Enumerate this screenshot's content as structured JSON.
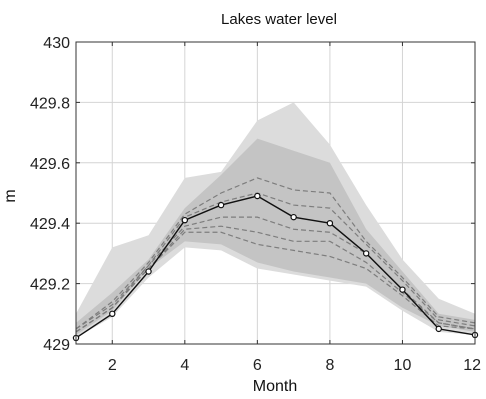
{
  "chart_data": {
    "type": "line",
    "title": "Lakes water level",
    "xlabel": "Month",
    "ylabel": "m",
    "xlim": [
      1,
      12
    ],
    "ylim": [
      429,
      430
    ],
    "grid": true,
    "legend": "none",
    "x": [
      1,
      2,
      3,
      4,
      5,
      6,
      7,
      8,
      9,
      10,
      11,
      12
    ],
    "x_ticks": [
      2,
      4,
      6,
      8,
      10,
      12
    ],
    "x_tick_labels": [
      "2",
      "4",
      "6",
      "8",
      "10",
      "12"
    ],
    "y_ticks": [
      429,
      429.2,
      429.4,
      429.6,
      429.8,
      430
    ],
    "y_tick_labels": [
      "429",
      "429.2",
      "429.4",
      "429.6",
      "429.8",
      "430"
    ],
    "observed": {
      "values": [
        429.02,
        429.1,
        429.24,
        429.41,
        429.46,
        429.49,
        429.42,
        429.4,
        429.3,
        429.18,
        429.05,
        429.03
      ],
      "color": "#111111"
    },
    "ensemble_envelope": {
      "lower": [
        429.03,
        429.11,
        429.25,
        429.34,
        429.33,
        429.27,
        429.24,
        429.22,
        429.2,
        429.12,
        429.06,
        429.04
      ],
      "upper": [
        429.07,
        429.17,
        429.28,
        429.45,
        429.56,
        429.68,
        429.64,
        429.6,
        429.38,
        429.24,
        429.1,
        429.08
      ],
      "color": "#c4c4c4"
    },
    "ensemble_outliers": {
      "lower": [
        429.02,
        429.09,
        429.22,
        429.32,
        429.31,
        429.25,
        429.23,
        429.21,
        429.19,
        429.11,
        429.04,
        429.03
      ],
      "upper": [
        429.1,
        429.32,
        429.36,
        429.55,
        429.57,
        429.74,
        429.8,
        429.66,
        429.46,
        429.28,
        429.15,
        429.1
      ],
      "color": "#dcdcdc"
    },
    "quantile_lines": [
      {
        "values": [
          429.05,
          429.14,
          429.27,
          429.43,
          429.5,
          429.55,
          429.51,
          429.5,
          429.34,
          429.22,
          429.09,
          429.07
        ]
      },
      {
        "values": [
          429.05,
          429.13,
          429.26,
          429.42,
          429.47,
          429.5,
          429.46,
          429.45,
          429.33,
          429.21,
          429.08,
          429.06
        ]
      },
      {
        "values": [
          429.04,
          429.12,
          429.26,
          429.39,
          429.42,
          429.42,
          429.38,
          429.37,
          429.3,
          429.18,
          429.07,
          429.05
        ]
      },
      {
        "values": [
          429.04,
          429.12,
          429.25,
          429.38,
          429.39,
          429.37,
          429.34,
          429.34,
          429.27,
          429.17,
          429.07,
          429.05
        ]
      },
      {
        "values": [
          429.04,
          429.12,
          429.25,
          429.37,
          429.37,
          429.33,
          429.31,
          429.29,
          429.25,
          429.16,
          429.06,
          429.05
        ]
      }
    ],
    "quantile_color": "#7d7d7d"
  }
}
